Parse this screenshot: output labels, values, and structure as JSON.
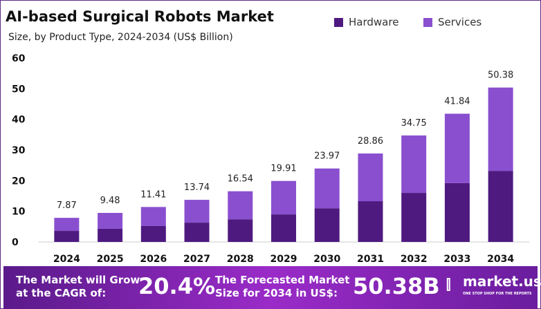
{
  "chart_data": {
    "type": "bar",
    "stacked": true,
    "title": "AI-based Surgical Robots Market",
    "subtitle": "Size, by Product Type, 2024-2034 (US$ Billion)",
    "categories": [
      "2024",
      "2025",
      "2026",
      "2027",
      "2028",
      "2029",
      "2030",
      "2031",
      "2032",
      "2033",
      "2034"
    ],
    "totals": [
      7.87,
      9.48,
      11.41,
      13.74,
      16.54,
      19.91,
      23.97,
      28.86,
      34.75,
      41.84,
      50.38
    ],
    "total_labels": [
      "7.87",
      "9.48",
      "11.41",
      "13.74",
      "16.54",
      "19.91",
      "23.97",
      "28.86",
      "34.75",
      "41.84",
      "50.38"
    ],
    "series": [
      {
        "name": "Hardware",
        "color": "#4e1a80",
        "values": [
          3.6,
          4.3,
          5.2,
          6.3,
          7.4,
          9.0,
          11.0,
          13.3,
          16.0,
          19.2,
          23.2
        ]
      },
      {
        "name": "Services",
        "color": "#8a4fcf",
        "values": [
          4.27,
          5.18,
          6.21,
          7.44,
          9.14,
          10.91,
          12.97,
          15.56,
          18.75,
          22.64,
          27.18
        ]
      }
    ],
    "yticks": [
      "0",
      "10",
      "20",
      "30",
      "40",
      "50",
      "60"
    ],
    "ylim": [
      0,
      60
    ],
    "grid": false,
    "legend": "top-right"
  },
  "banner": {
    "grow_text_1": "The Market will Grow",
    "grow_text_2": "at the CAGR of:",
    "cagr": "20.4%",
    "forecast_text_1": "The Forecasted Market",
    "forecast_text_2": "Size for 2034 in US$:",
    "forecast_value": "50.38B",
    "brand": "market.us",
    "brand_tagline": "ONE STOP SHOP FOR THE REPORTS"
  }
}
